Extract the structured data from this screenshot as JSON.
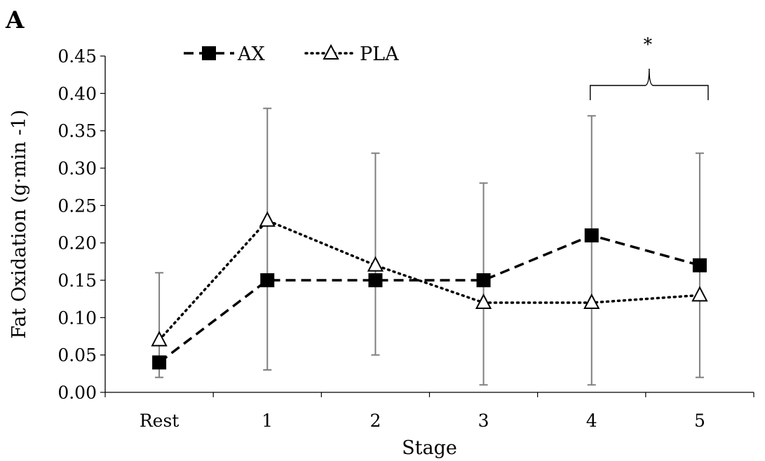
{
  "panel_label": "A",
  "chart_data": {
    "type": "line",
    "title": "",
    "xlabel": "Stage",
    "ylabel": "Fat Oxidation (g·min -1)",
    "categories": [
      "Rest",
      "1",
      "2",
      "3",
      "4",
      "5"
    ],
    "ylim": [
      0,
      0.45
    ],
    "yticks": [
      "0.00",
      "0.05",
      "0.10",
      "0.15",
      "0.20",
      "0.25",
      "0.30",
      "0.35",
      "0.40",
      "0.45"
    ],
    "grid": false,
    "legend_position": "top-left",
    "series": [
      {
        "name": "AX",
        "style": "dashed",
        "marker": "filled-square",
        "values": [
          0.04,
          0.15,
          0.15,
          0.15,
          0.21,
          0.17
        ]
      },
      {
        "name": "PLA",
        "style": "dotted",
        "marker": "open-triangle",
        "values": [
          0.07,
          0.23,
          0.17,
          0.12,
          0.12,
          0.13
        ]
      }
    ],
    "error_bars": [
      {
        "category": "Rest",
        "low": 0.02,
        "high": 0.16
      },
      {
        "category": "1",
        "low": 0.03,
        "high": 0.38
      },
      {
        "category": "2",
        "low": 0.05,
        "high": 0.32
      },
      {
        "category": "3",
        "low": 0.01,
        "high": 0.28
      },
      {
        "category": "4",
        "low": 0.01,
        "high": 0.37
      },
      {
        "category": "5",
        "low": 0.02,
        "high": 0.32
      }
    ],
    "annotations": [
      {
        "text": "*",
        "type": "significance-bracket",
        "from": "4",
        "to": "5"
      }
    ],
    "colors": {
      "line": "#000000",
      "error_bar": "#7f7f7f"
    }
  }
}
